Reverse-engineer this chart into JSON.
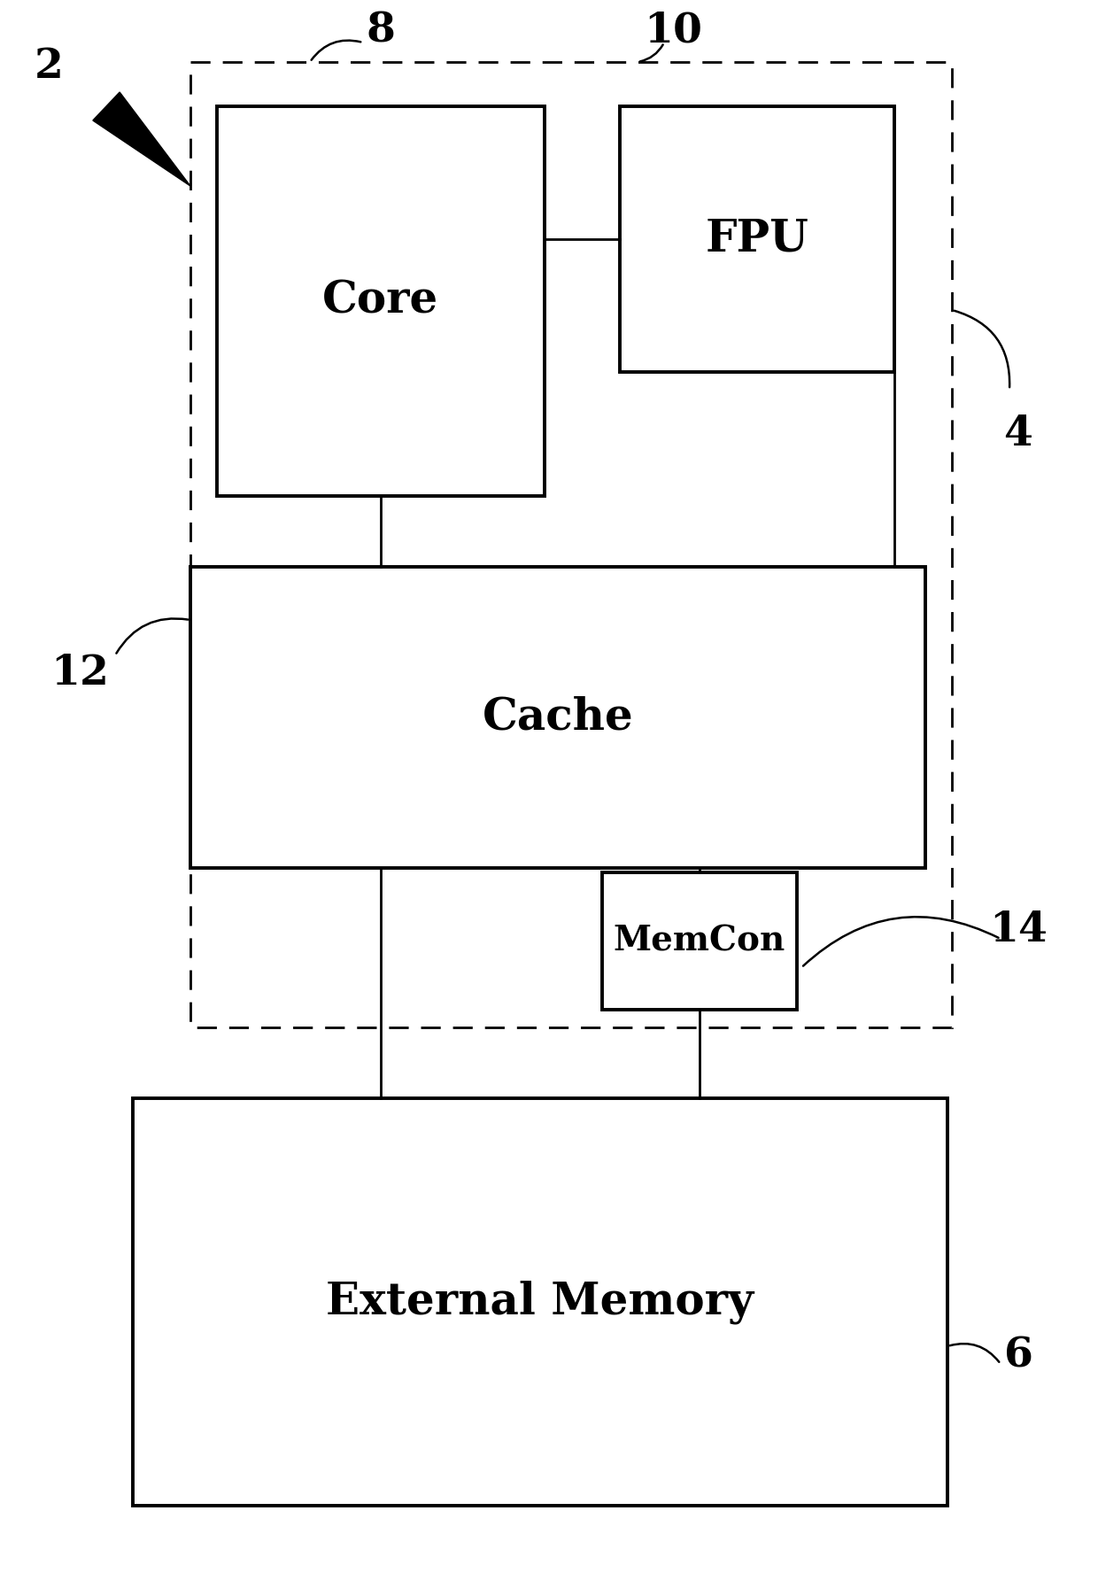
{
  "fig_width": 12.4,
  "fig_height": 18.02,
  "bg_color": "#ffffff",
  "label_2": "2",
  "label_4": "4",
  "label_6": "6",
  "label_8": "8",
  "label_10": "10",
  "label_12": "12",
  "label_14": "14",
  "core_label": "Core",
  "fpu_label": "FPU",
  "cache_label": "Cache",
  "memcon_label": "MemCon",
  "extmem_label": "External Memory",
  "box_edge": "#000000",
  "line_color": "#000000"
}
